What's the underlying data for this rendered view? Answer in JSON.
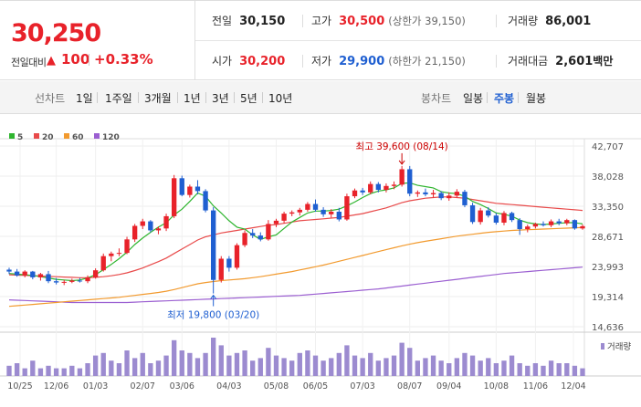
{
  "price": {
    "current": "30,250",
    "diff_label": "전일대비",
    "diff_arrow": "▲",
    "diff_value": "100",
    "diff_pct": "+0.33%"
  },
  "summary": {
    "prev_close": {
      "label": "전일",
      "value": "30,150"
    },
    "high": {
      "label": "고가",
      "value": "30,500",
      "sub": "(상한가 39,150)"
    },
    "volume": {
      "label": "거래량",
      "value": "86,001"
    },
    "open": {
      "label": "시가",
      "value": "30,200"
    },
    "low": {
      "label": "저가",
      "value": "29,900",
      "sub": "(하한가 21,150)"
    },
    "amount": {
      "label": "거래대금",
      "value": "2,601",
      "unit": "백만"
    }
  },
  "line_tabs": {
    "title": "선차트",
    "items": [
      "1일",
      "1주일",
      "3개월",
      "1년",
      "3년",
      "5년",
      "10년"
    ]
  },
  "candle_tabs": {
    "title": "봉차트",
    "items": [
      "일봉",
      "주봉",
      "월봉"
    ],
    "active": "주봉"
  },
  "colors": {
    "up": "#e8222a",
    "down": "#1f5fd1",
    "ma5": "#2fb52f",
    "ma20": "#e84a4a",
    "ma60": "#f29a2e",
    "ma120": "#9b5fd1",
    "volume": "#9c8bd0"
  },
  "chart_data": {
    "type": "candlestick",
    "legend": [
      "5",
      "20",
      "60",
      "120"
    ],
    "y_ticks": [
      "42,707",
      "38,028",
      "33,350",
      "28,671",
      "23,993",
      "19,314",
      "14,636"
    ],
    "ylim": [
      14636,
      42707
    ],
    "x_ticks": [
      "10/25",
      "12/06",
      "01/03",
      "02/07",
      "03/06",
      "04/03",
      "05/08",
      "06/05",
      "07/03",
      "08/07",
      "09/04",
      "10/08",
      "11/06",
      "12/04"
    ],
    "annotations": {
      "high": {
        "label": "최고",
        "text": "39,600 (08/14)"
      },
      "low": {
        "label": "최저",
        "text": "19,800 (03/20)"
      }
    },
    "volume_label": "거래량",
    "candles": [
      [
        23500,
        23800,
        22800,
        23200
      ],
      [
        23200,
        23600,
        22400,
        22600
      ],
      [
        22600,
        23400,
        22300,
        23200
      ],
      [
        23200,
        23300,
        22000,
        22300
      ],
      [
        22300,
        23000,
        21800,
        22800
      ],
      [
        22800,
        23300,
        21400,
        21700
      ],
      [
        21700,
        22200,
        21200,
        21500
      ],
      [
        21500,
        21900,
        21100,
        21600
      ],
      [
        21600,
        22100,
        21400,
        21800
      ],
      [
        21800,
        22200,
        21500,
        21700
      ],
      [
        21700,
        22600,
        21400,
        22300
      ],
      [
        22300,
        23700,
        22100,
        23400
      ],
      [
        23400,
        26000,
        23200,
        25600
      ],
      [
        25600,
        26300,
        24800,
        26000
      ],
      [
        26000,
        26800,
        25600,
        26100
      ],
      [
        26100,
        28600,
        25900,
        28200
      ],
      [
        28200,
        30600,
        27800,
        30300
      ],
      [
        30300,
        31400,
        29800,
        31000
      ],
      [
        31000,
        31200,
        29300,
        29600
      ],
      [
        29600,
        30200,
        29000,
        29900
      ],
      [
        29900,
        32200,
        29500,
        31800
      ],
      [
        31800,
        38200,
        31500,
        37700
      ],
      [
        37700,
        38100,
        34900,
        35100
      ],
      [
        35100,
        36700,
        34700,
        36400
      ],
      [
        36400,
        37400,
        35200,
        35700
      ],
      [
        35700,
        36000,
        32400,
        32700
      ],
      [
        32700,
        33200,
        19800,
        21900
      ],
      [
        21900,
        25600,
        21500,
        25200
      ],
      [
        25200,
        25600,
        23200,
        23800
      ],
      [
        23800,
        27600,
        23500,
        27300
      ],
      [
        27300,
        29600,
        27000,
        29200
      ],
      [
        29200,
        29800,
        28400,
        28800
      ],
      [
        28800,
        29300,
        27900,
        28200
      ],
      [
        28200,
        31200,
        28000,
        30600
      ],
      [
        30600,
        31400,
        30100,
        31100
      ],
      [
        31100,
        32500,
        30700,
        32200
      ],
      [
        32200,
        32700,
        31800,
        32400
      ],
      [
        32400,
        33100,
        31900,
        32800
      ],
      [
        32800,
        34000,
        32500,
        33700
      ],
      [
        33700,
        34400,
        32500,
        32800
      ],
      [
        32800,
        33200,
        31700,
        32100
      ],
      [
        32100,
        32900,
        31600,
        32500
      ],
      [
        32500,
        33100,
        31000,
        31300
      ],
      [
        31300,
        35300,
        31100,
        34900
      ],
      [
        34900,
        36100,
        34600,
        35800
      ],
      [
        35800,
        36200,
        35100,
        35500
      ],
      [
        35500,
        37200,
        35200,
        36800
      ],
      [
        36800,
        37100,
        35500,
        35900
      ],
      [
        35900,
        36900,
        35500,
        36500
      ],
      [
        36500,
        37200,
        36000,
        36700
      ],
      [
        36700,
        39600,
        36400,
        39100
      ],
      [
        39100,
        39600,
        34900,
        35300
      ],
      [
        35300,
        35800,
        34800,
        35500
      ],
      [
        35500,
        36100,
        34900,
        35200
      ],
      [
        35200,
        35900,
        34700,
        35400
      ],
      [
        35400,
        35700,
        34300,
        34600
      ],
      [
        34600,
        35500,
        34200,
        35000
      ],
      [
        35000,
        36000,
        34700,
        35600
      ],
      [
        35600,
        35900,
        33200,
        33500
      ],
      [
        33500,
        33900,
        30600,
        30900
      ],
      [
        30900,
        33100,
        30500,
        32700
      ],
      [
        32700,
        33200,
        31600,
        31900
      ],
      [
        31900,
        32300,
        30500,
        30800
      ],
      [
        30800,
        32600,
        30400,
        32300
      ],
      [
        32300,
        32500,
        30900,
        31200
      ],
      [
        31200,
        31500,
        28900,
        29800
      ],
      [
        29800,
        30500,
        29300,
        30200
      ],
      [
        30200,
        30800,
        29900,
        30600
      ],
      [
        30600,
        31000,
        30200,
        30400
      ],
      [
        30400,
        31300,
        30100,
        31000
      ],
      [
        31000,
        31400,
        30400,
        30700
      ],
      [
        30700,
        31400,
        30400,
        31200
      ],
      [
        31200,
        31300,
        29700,
        29900
      ],
      [
        29900,
        30500,
        29700,
        30250
      ]
    ],
    "ma5": [
      22900,
      22800,
      22700,
      22600,
      22400,
      22200,
      22000,
      21900,
      21800,
      21900,
      22200,
      22700,
      23500,
      24300,
      25200,
      26200,
      27400,
      28400,
      29300,
      30100,
      30800,
      32000,
      32900,
      34100,
      35400,
      34900,
      33400,
      32300,
      31100,
      30100,
      29800,
      28900,
      28200,
      28600,
      28900,
      29900,
      30900,
      31600,
      32300,
      32600,
      32600,
      32700,
      32900,
      33400,
      34000,
      34700,
      35300,
      35700,
      35900,
      36200,
      36900,
      37000,
      36600,
      36400,
      36200,
      35600,
      35400,
      35300,
      34900,
      34100,
      33600,
      33000,
      32300,
      32100,
      31800,
      31200,
      30800,
      30600,
      30500,
      30600,
      30700,
      30800,
      30800,
      30600
    ],
    "ma20": [
      22700,
      22650,
      22600,
      22550,
      22500,
      22450,
      22400,
      22350,
      22300,
      22250,
      22250,
      22300,
      22400,
      22550,
      22750,
      23000,
      23350,
      23750,
      24250,
      24750,
      25300,
      26000,
      26700,
      27400,
      28100,
      28600,
      28900,
      29200,
      29400,
      29600,
      29800,
      30000,
      30200,
      30400,
      30500,
      30700,
      30900,
      31100,
      31200,
      31300,
      31400,
      31500,
      31600,
      31800,
      32000,
      32200,
      32500,
      32800,
      33100,
      33500,
      33900,
      34200,
      34400,
      34600,
      34700,
      34800,
      34800,
      34700,
      34600,
      34400,
      34200,
      34000,
      33800,
      33700,
      33600,
      33500,
      33400,
      33300,
      33200,
      33100,
      33000,
      32900,
      32800,
      32700
    ],
    "ma60": [
      17800,
      17900,
      18000,
      18100,
      18200,
      18300,
      18400,
      18500,
      18600,
      18700,
      18800,
      18900,
      19000,
      19100,
      19200,
      19350,
      19500,
      19650,
      19800,
      19950,
      20150,
      20400,
      20700,
      21000,
      21300,
      21500,
      21650,
      21800,
      21900,
      22000,
      22100,
      22250,
      22400,
      22600,
      22800,
      23000,
      23200,
      23450,
      23700,
      23950,
      24200,
      24500,
      24800,
      25100,
      25400,
      25700,
      26000,
      26300,
      26600,
      26900,
      27200,
      27450,
      27700,
      27900,
      28100,
      28300,
      28500,
      28700,
      28850,
      29000,
      29150,
      29300,
      29400,
      29500,
      29600,
      29650,
      29700,
      29750,
      29800,
      29850,
      29900,
      29950,
      30000,
      30050
    ],
    "ma120": [
      18800,
      18750,
      18700,
      18650,
      18600,
      18550,
      18500,
      18450,
      18400,
      18400,
      18400,
      18400,
      18400,
      18400,
      18400,
      18400,
      18450,
      18500,
      18550,
      18600,
      18650,
      18700,
      18750,
      18800,
      18850,
      18900,
      18950,
      19000,
      19050,
      19100,
      19150,
      19200,
      19250,
      19300,
      19350,
      19400,
      19450,
      19500,
      19600,
      19700,
      19800,
      19900,
      20000,
      20100,
      20200,
      20300,
      20400,
      20500,
      20650,
      20800,
      20950,
      21100,
      21250,
      21400,
      21550,
      21700,
      21850,
      22000,
      22150,
      22300,
      22450,
      22600,
      22750,
      22900,
      23000,
      23100,
      23200,
      23300,
      23400,
      23500,
      23600,
      23700,
      23800,
      23900
    ],
    "volume": [
      4,
      5,
      3,
      6,
      3,
      4,
      3,
      3,
      4,
      3,
      5,
      8,
      9,
      6,
      5,
      10,
      7,
      9,
      5,
      6,
      8,
      14,
      10,
      9,
      7,
      9,
      15,
      12,
      8,
      9,
      10,
      6,
      7,
      11,
      8,
      7,
      6,
      9,
      10,
      8,
      6,
      7,
      9,
      12,
      8,
      7,
      9,
      6,
      7,
      8,
      13,
      11,
      6,
      7,
      8,
      6,
      5,
      7,
      9,
      8,
      6,
      7,
      5,
      6,
      8,
      5,
      4,
      5,
      4,
      6,
      5,
      5,
      4,
      3
    ]
  }
}
